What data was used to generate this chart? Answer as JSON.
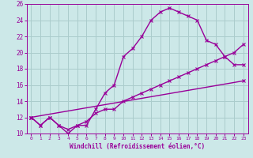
{
  "title": "",
  "xlabel": "Windchill (Refroidissement éolien,°C)",
  "ylabel": "",
  "bg_color": "#cce8e8",
  "grid_color": "#aacccc",
  "line_color": "#990099",
  "xlim": [
    -0.5,
    23.5
  ],
  "ylim": [
    10,
    26
  ],
  "xticks": [
    0,
    1,
    2,
    3,
    4,
    5,
    6,
    7,
    8,
    9,
    10,
    11,
    12,
    13,
    14,
    15,
    16,
    17,
    18,
    19,
    20,
    21,
    22,
    23
  ],
  "yticks": [
    10,
    12,
    14,
    16,
    18,
    20,
    22,
    24,
    26
  ],
  "line1_x": [
    0,
    1,
    2,
    3,
    4,
    5,
    6,
    7,
    8,
    9,
    10,
    11,
    12,
    13,
    14,
    15,
    16,
    17,
    18,
    19,
    20,
    21,
    22,
    23
  ],
  "line1_y": [
    12,
    11,
    12,
    11,
    10,
    11,
    11,
    13,
    15,
    16,
    19.5,
    20.5,
    22,
    24,
    25,
    25.5,
    25,
    24.5,
    24,
    21.5,
    21,
    19.5,
    18.5,
    18.5
  ],
  "line2_x": [
    0,
    1,
    2,
    3,
    4,
    5,
    6,
    7,
    8,
    9,
    10,
    11,
    12,
    13,
    14,
    15,
    16,
    17,
    18,
    19,
    20,
    21,
    22,
    23
  ],
  "line2_y": [
    12,
    11,
    12,
    11,
    10.5,
    11,
    11.5,
    12.5,
    13,
    13,
    14,
    14.5,
    15,
    15.5,
    16,
    16.5,
    17,
    17.5,
    18,
    18.5,
    19,
    19.5,
    20,
    21
  ],
  "line3_x": [
    0,
    23
  ],
  "line3_y": [
    12,
    16.5
  ]
}
